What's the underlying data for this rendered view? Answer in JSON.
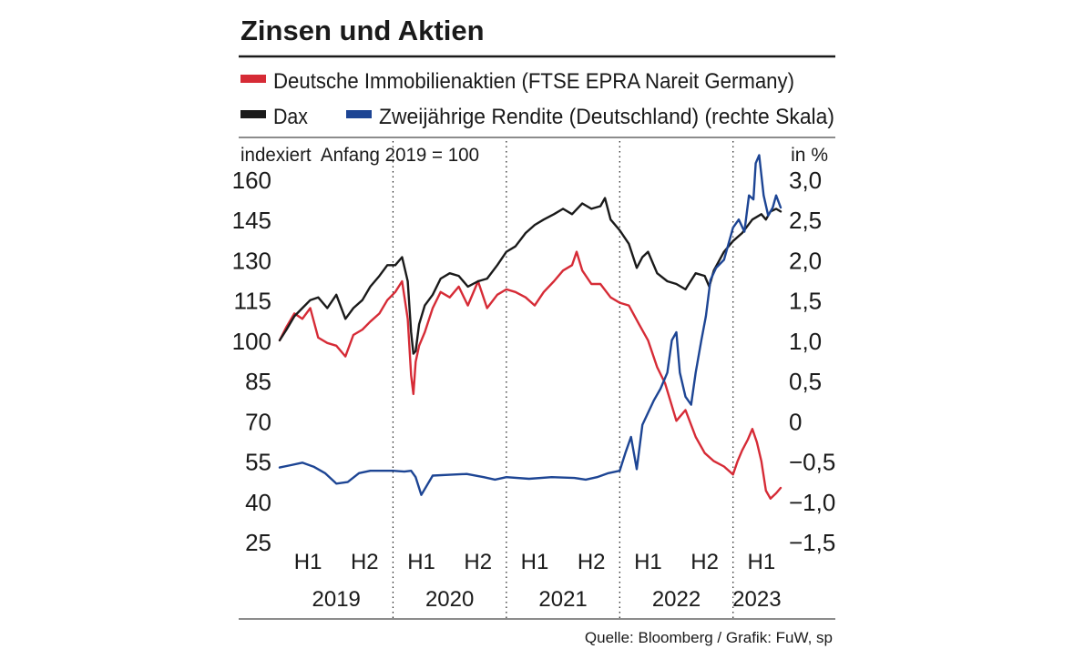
{
  "chart_data": {
    "type": "line",
    "title": "Zinsen und Aktien",
    "legend": {
      "placement": "top",
      "items": [
        {
          "name": "Deutsche Immobilienaktien (FTSE EPRA Nareit Germany)",
          "color": "#d62b36"
        },
        {
          "name": "Dax",
          "color": "#1a1a1a"
        },
        {
          "name": "Zweijährige Rendite (Deutschland) (rechte Skala)",
          "color": "#1d4594"
        }
      ]
    },
    "left_axis": {
      "label": "indexiert  Anfang 2019 = 100",
      "ticks": [
        "160",
        "145",
        "130",
        "115",
        "100",
        "85",
        "70",
        "55",
        "40",
        "25"
      ],
      "ylim": [
        25,
        160
      ]
    },
    "right_axis": {
      "label": "in %",
      "ticks": [
        "3,0",
        "2,5",
        "2,0",
        "1,5",
        "1,0",
        "0,5",
        "0",
        "−0,5",
        "−1,0",
        "−1,5"
      ],
      "ylim": [
        -1.5,
        3.0
      ]
    },
    "x_axis": {
      "halves": [
        "H1",
        "H2",
        "H1",
        "H2",
        "H1",
        "H2",
        "H1",
        "H2",
        "H1"
      ],
      "years": [
        "2019",
        "2020",
        "2021",
        "2022",
        "2023"
      ],
      "xlim": [
        2019.0,
        2023.42
      ]
    },
    "grid": "dotted vertical at year boundaries",
    "series": [
      {
        "name": "Deutsche Immobilienaktien (FTSE EPRA Nareit Germany)",
        "axis": "left",
        "color": "#d62b36",
        "x": [
          2019.0,
          2019.06,
          2019.13,
          2019.2,
          2019.27,
          2019.34,
          2019.42,
          2019.5,
          2019.58,
          2019.65,
          2019.73,
          2019.8,
          2019.88,
          2019.95,
          2020.02,
          2020.08,
          2020.13,
          2020.16,
          2020.18,
          2020.2,
          2020.23,
          2020.28,
          2020.35,
          2020.42,
          2020.5,
          2020.58,
          2020.66,
          2020.75,
          2020.83,
          2020.92,
          2021.0,
          2021.08,
          2021.17,
          2021.25,
          2021.33,
          2021.42,
          2021.5,
          2021.58,
          2021.62,
          2021.67,
          2021.75,
          2021.83,
          2021.92,
          2022.0,
          2022.08,
          2022.17,
          2022.25,
          2022.33,
          2022.4,
          2022.45,
          2022.5,
          2022.58,
          2022.67,
          2022.75,
          2022.83,
          2022.92,
          2023.0,
          2023.04,
          2023.08,
          2023.13,
          2023.17,
          2023.21,
          2023.25,
          2023.29,
          2023.33,
          2023.38,
          2023.42
        ],
        "values": [
          100,
          105,
          110,
          108,
          112,
          101,
          99,
          98,
          94,
          102,
          104,
          107,
          110,
          115,
          118,
          122,
          108,
          87,
          80,
          92,
          98,
          103,
          112,
          118,
          116,
          120,
          113,
          122,
          112,
          117,
          119,
          118,
          116,
          113,
          118,
          122,
          126,
          128,
          133,
          126,
          121,
          121,
          116,
          114,
          113,
          106,
          100,
          90,
          84,
          77,
          70,
          74,
          64,
          58,
          55,
          53,
          50,
          55,
          59,
          63,
          67,
          62,
          55,
          44,
          41,
          43,
          45
        ]
      },
      {
        "name": "Dax",
        "axis": "left",
        "color": "#1a1a1a",
        "x": [
          2019.0,
          2019.06,
          2019.13,
          2019.2,
          2019.27,
          2019.34,
          2019.42,
          2019.5,
          2019.58,
          2019.65,
          2019.73,
          2019.8,
          2019.88,
          2019.95,
          2020.02,
          2020.08,
          2020.13,
          2020.16,
          2020.18,
          2020.2,
          2020.23,
          2020.28,
          2020.35,
          2020.42,
          2020.5,
          2020.58,
          2020.66,
          2020.75,
          2020.83,
          2020.92,
          2021.0,
          2021.08,
          2021.17,
          2021.25,
          2021.33,
          2021.42,
          2021.5,
          2021.58,
          2021.67,
          2021.75,
          2021.83,
          2021.87,
          2021.92,
          2022.0,
          2022.08,
          2022.15,
          2022.2,
          2022.25,
          2022.33,
          2022.42,
          2022.5,
          2022.58,
          2022.67,
          2022.75,
          2022.79,
          2022.83,
          2022.92,
          2023.0,
          2023.08,
          2023.17,
          2023.25,
          2023.29,
          2023.33,
          2023.38,
          2023.42
        ],
        "values": [
          100,
          104,
          109,
          112,
          115,
          116,
          112,
          117,
          108,
          112,
          115,
          120,
          124,
          128,
          128,
          131,
          122,
          103,
          95,
          96,
          106,
          113,
          117,
          123,
          125,
          124,
          120,
          122,
          123,
          128,
          133,
          135,
          140,
          143,
          145,
          147,
          149,
          147,
          151,
          149,
          150,
          153,
          145,
          141,
          136,
          127,
          131,
          133,
          125,
          122,
          121,
          119,
          125,
          124,
          120,
          126,
          133,
          137,
          140,
          145,
          147,
          145,
          148,
          149,
          148
        ]
      },
      {
        "name": "Zweijährige Rendite (Deutschland) (rechte Skala)",
        "axis": "right",
        "color": "#1d4594",
        "x": [
          2019.0,
          2019.1,
          2019.2,
          2019.3,
          2019.4,
          2019.5,
          2019.6,
          2019.7,
          2019.8,
          2019.9,
          2020.0,
          2020.1,
          2020.16,
          2020.2,
          2020.25,
          2020.35,
          2020.5,
          2020.65,
          2020.8,
          2020.9,
          2021.0,
          2021.2,
          2021.4,
          2021.6,
          2021.7,
          2021.8,
          2021.9,
          2022.0,
          2022.05,
          2022.1,
          2022.15,
          2022.2,
          2022.3,
          2022.36,
          2022.42,
          2022.46,
          2022.5,
          2022.53,
          2022.58,
          2022.63,
          2022.67,
          2022.72,
          2022.76,
          2022.8,
          2022.85,
          2022.92,
          2023.0,
          2023.05,
          2023.1,
          2023.14,
          2023.18,
          2023.2,
          2023.23,
          2023.27,
          2023.31,
          2023.35,
          2023.38,
          2023.42
        ],
        "values": [
          -0.58,
          -0.55,
          -0.52,
          -0.57,
          -0.65,
          -0.78,
          -0.76,
          -0.65,
          -0.62,
          -0.62,
          -0.62,
          -0.63,
          -0.62,
          -0.7,
          -0.92,
          -0.68,
          -0.67,
          -0.66,
          -0.7,
          -0.73,
          -0.7,
          -0.72,
          -0.7,
          -0.71,
          -0.73,
          -0.7,
          -0.65,
          -0.62,
          -0.4,
          -0.2,
          -0.6,
          -0.05,
          0.25,
          0.4,
          0.6,
          1.0,
          1.1,
          0.6,
          0.3,
          0.2,
          0.6,
          1.0,
          1.3,
          1.75,
          1.9,
          2.0,
          2.4,
          2.5,
          2.35,
          2.8,
          2.75,
          3.2,
          3.3,
          2.8,
          2.55,
          2.65,
          2.8,
          2.65
        ]
      }
    ]
  },
  "source": "Quelle: Bloomberg / Grafik: FuW, sp"
}
